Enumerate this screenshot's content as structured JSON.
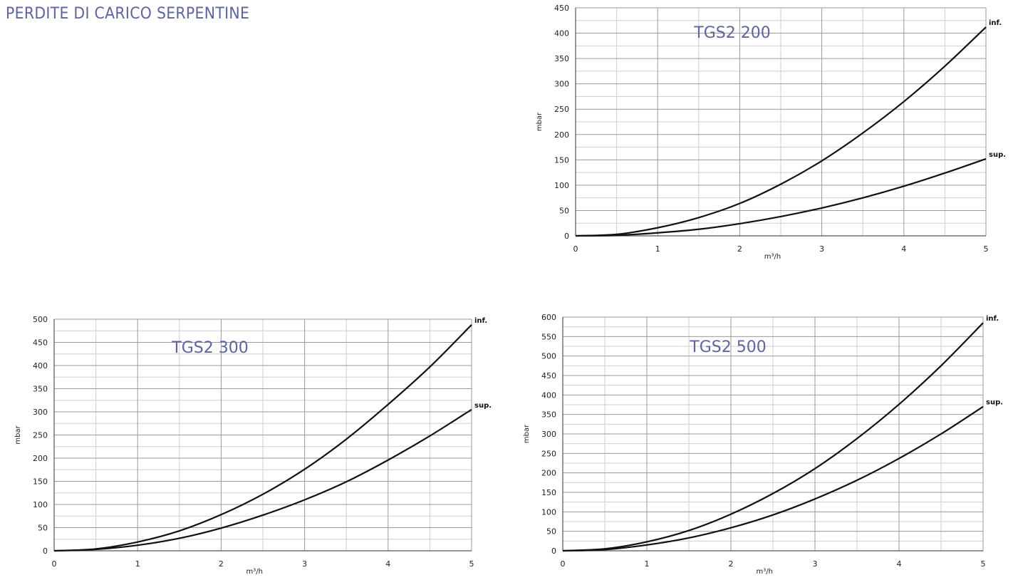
{
  "page": {
    "title": "PERDITE DI CARICO SERPENTINE"
  },
  "colors": {
    "title": "#5d64a6",
    "grid_major": "#9a9a9a",
    "grid_minor": "#cfcfcf",
    "curve": "#111111"
  },
  "chart_data": [
    {
      "type": "line",
      "title": "TGS2 200",
      "xlabel": "m³/h",
      "ylabel": "mbar",
      "xlim": [
        0,
        5
      ],
      "ylim": [
        0,
        450
      ],
      "x_ticks": [
        0,
        1,
        2,
        3,
        4,
        5
      ],
      "y_ticks": [
        0,
        50,
        100,
        150,
        200,
        250,
        300,
        350,
        400,
        450
      ],
      "grid": true,
      "series": [
        {
          "name": "inf.",
          "x": [
            0,
            0.5,
            1,
            1.5,
            2,
            2.5,
            3,
            3.5,
            4,
            4.5,
            5
          ],
          "values": [
            0,
            3,
            16,
            36,
            64,
            102,
            148,
            203,
            265,
            335,
            412
          ]
        },
        {
          "name": "sup.",
          "x": [
            0,
            0.5,
            1,
            1.5,
            2,
            2.5,
            3,
            3.5,
            4,
            4.5,
            5
          ],
          "values": [
            0,
            1,
            6,
            13,
            24,
            38,
            55,
            75,
            98,
            124,
            152
          ]
        }
      ]
    },
    {
      "type": "line",
      "title": "TGS2 300",
      "xlabel": "m³/h",
      "ylabel": "mbar",
      "xlim": [
        0,
        5
      ],
      "ylim": [
        0,
        500
      ],
      "x_ticks": [
        0,
        1,
        2,
        3,
        4,
        5
      ],
      "y_ticks": [
        0,
        50,
        100,
        150,
        200,
        250,
        300,
        350,
        400,
        450,
        500
      ],
      "grid": true,
      "series": [
        {
          "name": "inf.",
          "x": [
            0,
            0.5,
            1,
            1.5,
            2,
            2.5,
            3,
            3.5,
            4,
            4.5,
            5
          ],
          "values": [
            0,
            4,
            19,
            43,
            78,
            122,
            176,
            241,
            316,
            397,
            488
          ]
        },
        {
          "name": "sup.",
          "x": [
            0,
            0.5,
            1,
            1.5,
            2,
            2.5,
            3,
            3.5,
            4,
            4.5,
            5
          ],
          "values": [
            0,
            3,
            12,
            27,
            49,
            77,
            110,
            149,
            196,
            248,
            305
          ]
        }
      ]
    },
    {
      "type": "line",
      "title": "TGS2 500",
      "xlabel": "m³/h",
      "ylabel": "mbar",
      "xlim": [
        0,
        5
      ],
      "ylim": [
        0,
        600
      ],
      "x_ticks": [
        0,
        1,
        2,
        3,
        4,
        5
      ],
      "y_ticks": [
        0,
        50,
        100,
        150,
        200,
        250,
        300,
        350,
        400,
        450,
        500,
        550,
        600
      ],
      "grid": true,
      "series": [
        {
          "name": "inf.",
          "x": [
            0,
            0.5,
            1,
            1.5,
            2,
            2.5,
            3,
            3.5,
            4,
            4.5,
            5
          ],
          "values": [
            0,
            5,
            23,
            52,
            94,
            147,
            211,
            288,
            376,
            475,
            585
          ]
        },
        {
          "name": "sup.",
          "x": [
            0,
            0.5,
            1,
            1.5,
            2,
            2.5,
            3,
            3.5,
            4,
            4.5,
            5
          ],
          "values": [
            0,
            3,
            15,
            33,
            59,
            92,
            133,
            181,
            237,
            300,
            370
          ]
        }
      ]
    }
  ]
}
